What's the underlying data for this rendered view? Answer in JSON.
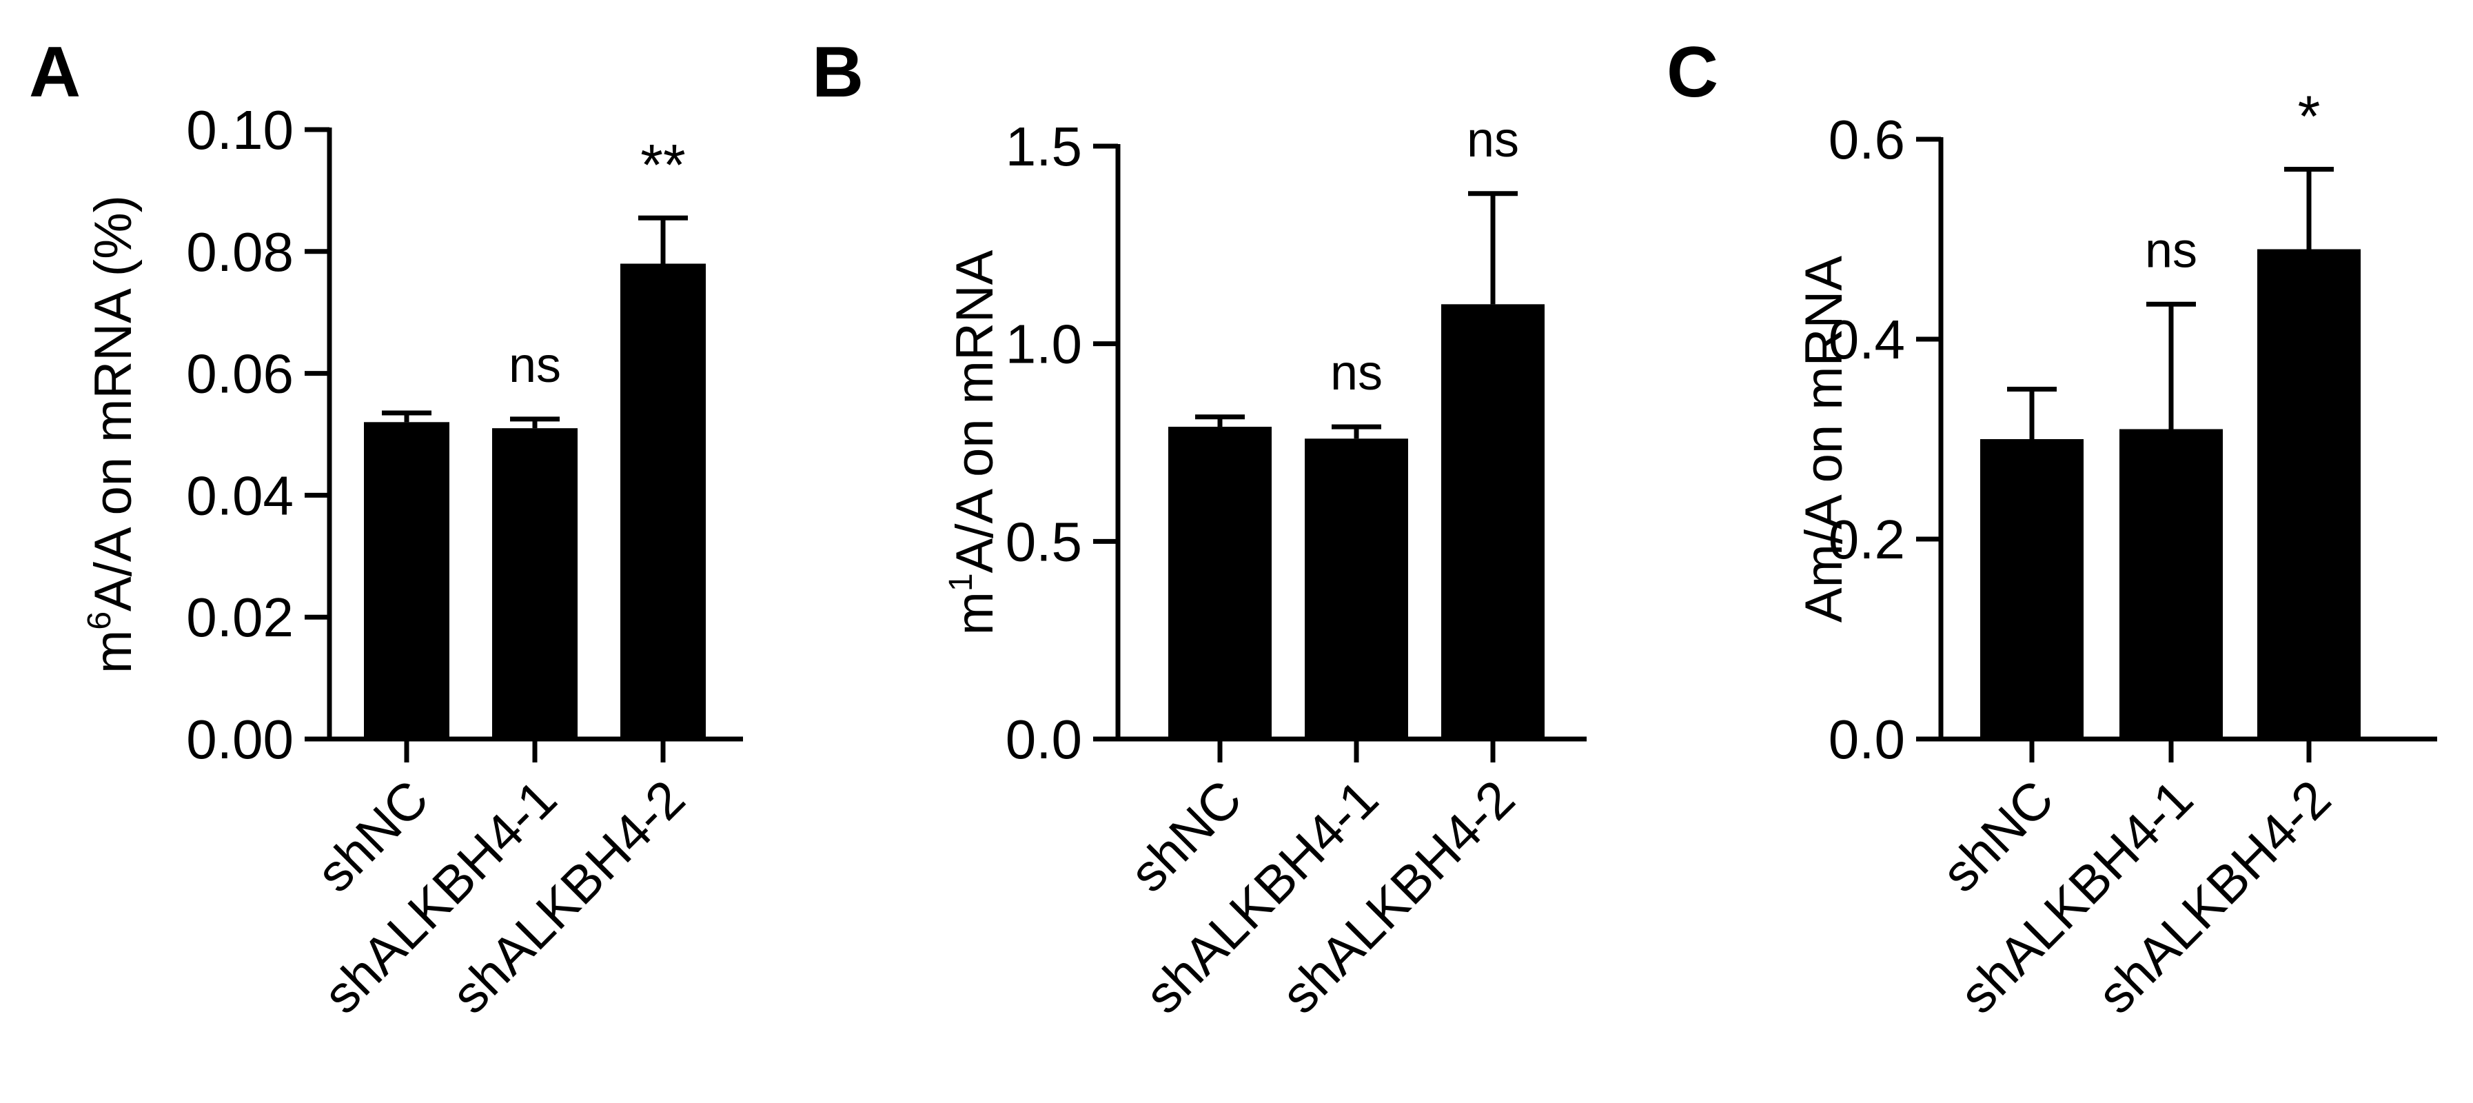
{
  "chart_data": [
    {
      "panel": "A",
      "type": "bar",
      "ylabel_parts": [
        {
          "text": "m",
          "sup": false
        },
        {
          "text": "6",
          "sup": true
        },
        {
          "text": "A/A on mRNA (%)",
          "sup": false
        }
      ],
      "ylim": [
        0,
        0.1
      ],
      "yticks": [
        0.0,
        0.02,
        0.04,
        0.06,
        0.08,
        0.1
      ],
      "ytick_labels": [
        "0.00",
        "0.02",
        "0.04",
        "0.06",
        "0.08",
        "0.10"
      ],
      "categories": [
        "shNC",
        "shALKBH4-1",
        "shALKBH4-2"
      ],
      "values": [
        0.052,
        0.051,
        0.078
      ],
      "errors": [
        0.0015,
        0.0015,
        0.0075
      ],
      "significance": [
        "",
        "ns",
        "**"
      ],
      "bar_color": "#000000"
    },
    {
      "panel": "B",
      "type": "bar",
      "ylabel_parts": [
        {
          "text": "m",
          "sup": false
        },
        {
          "text": "1",
          "sup": true
        },
        {
          "text": "A/A on mRNA",
          "sup": false
        }
      ],
      "ylim": [
        0,
        1.5
      ],
      "yticks": [
        0.0,
        0.5,
        1.0,
        1.5
      ],
      "ytick_labels": [
        "0.0",
        "0.5",
        "1.0",
        "1.5"
      ],
      "categories": [
        "shNC",
        "shALKBH4-1",
        "shALKBH4-2"
      ],
      "values": [
        0.79,
        0.76,
        1.1
      ],
      "errors": [
        0.025,
        0.03,
        0.28
      ],
      "significance": [
        "",
        "ns",
        "ns"
      ],
      "bar_color": "#000000"
    },
    {
      "panel": "C",
      "type": "bar",
      "ylabel_parts": [
        {
          "text": "Am/A on mRNA",
          "sup": false
        }
      ],
      "ylim": [
        0,
        0.6
      ],
      "yticks": [
        0.0,
        0.2,
        0.4,
        0.6
      ],
      "ytick_labels": [
        "0.0",
        "0.2",
        "0.4",
        "0.6"
      ],
      "categories": [
        "shNC",
        "shALKBH4-1",
        "shALKBH4-2"
      ],
      "values": [
        0.3,
        0.31,
        0.49
      ],
      "errors": [
        0.05,
        0.125,
        0.08
      ],
      "significance": [
        "",
        "ns",
        "*"
      ],
      "bar_color": "#000000"
    }
  ]
}
